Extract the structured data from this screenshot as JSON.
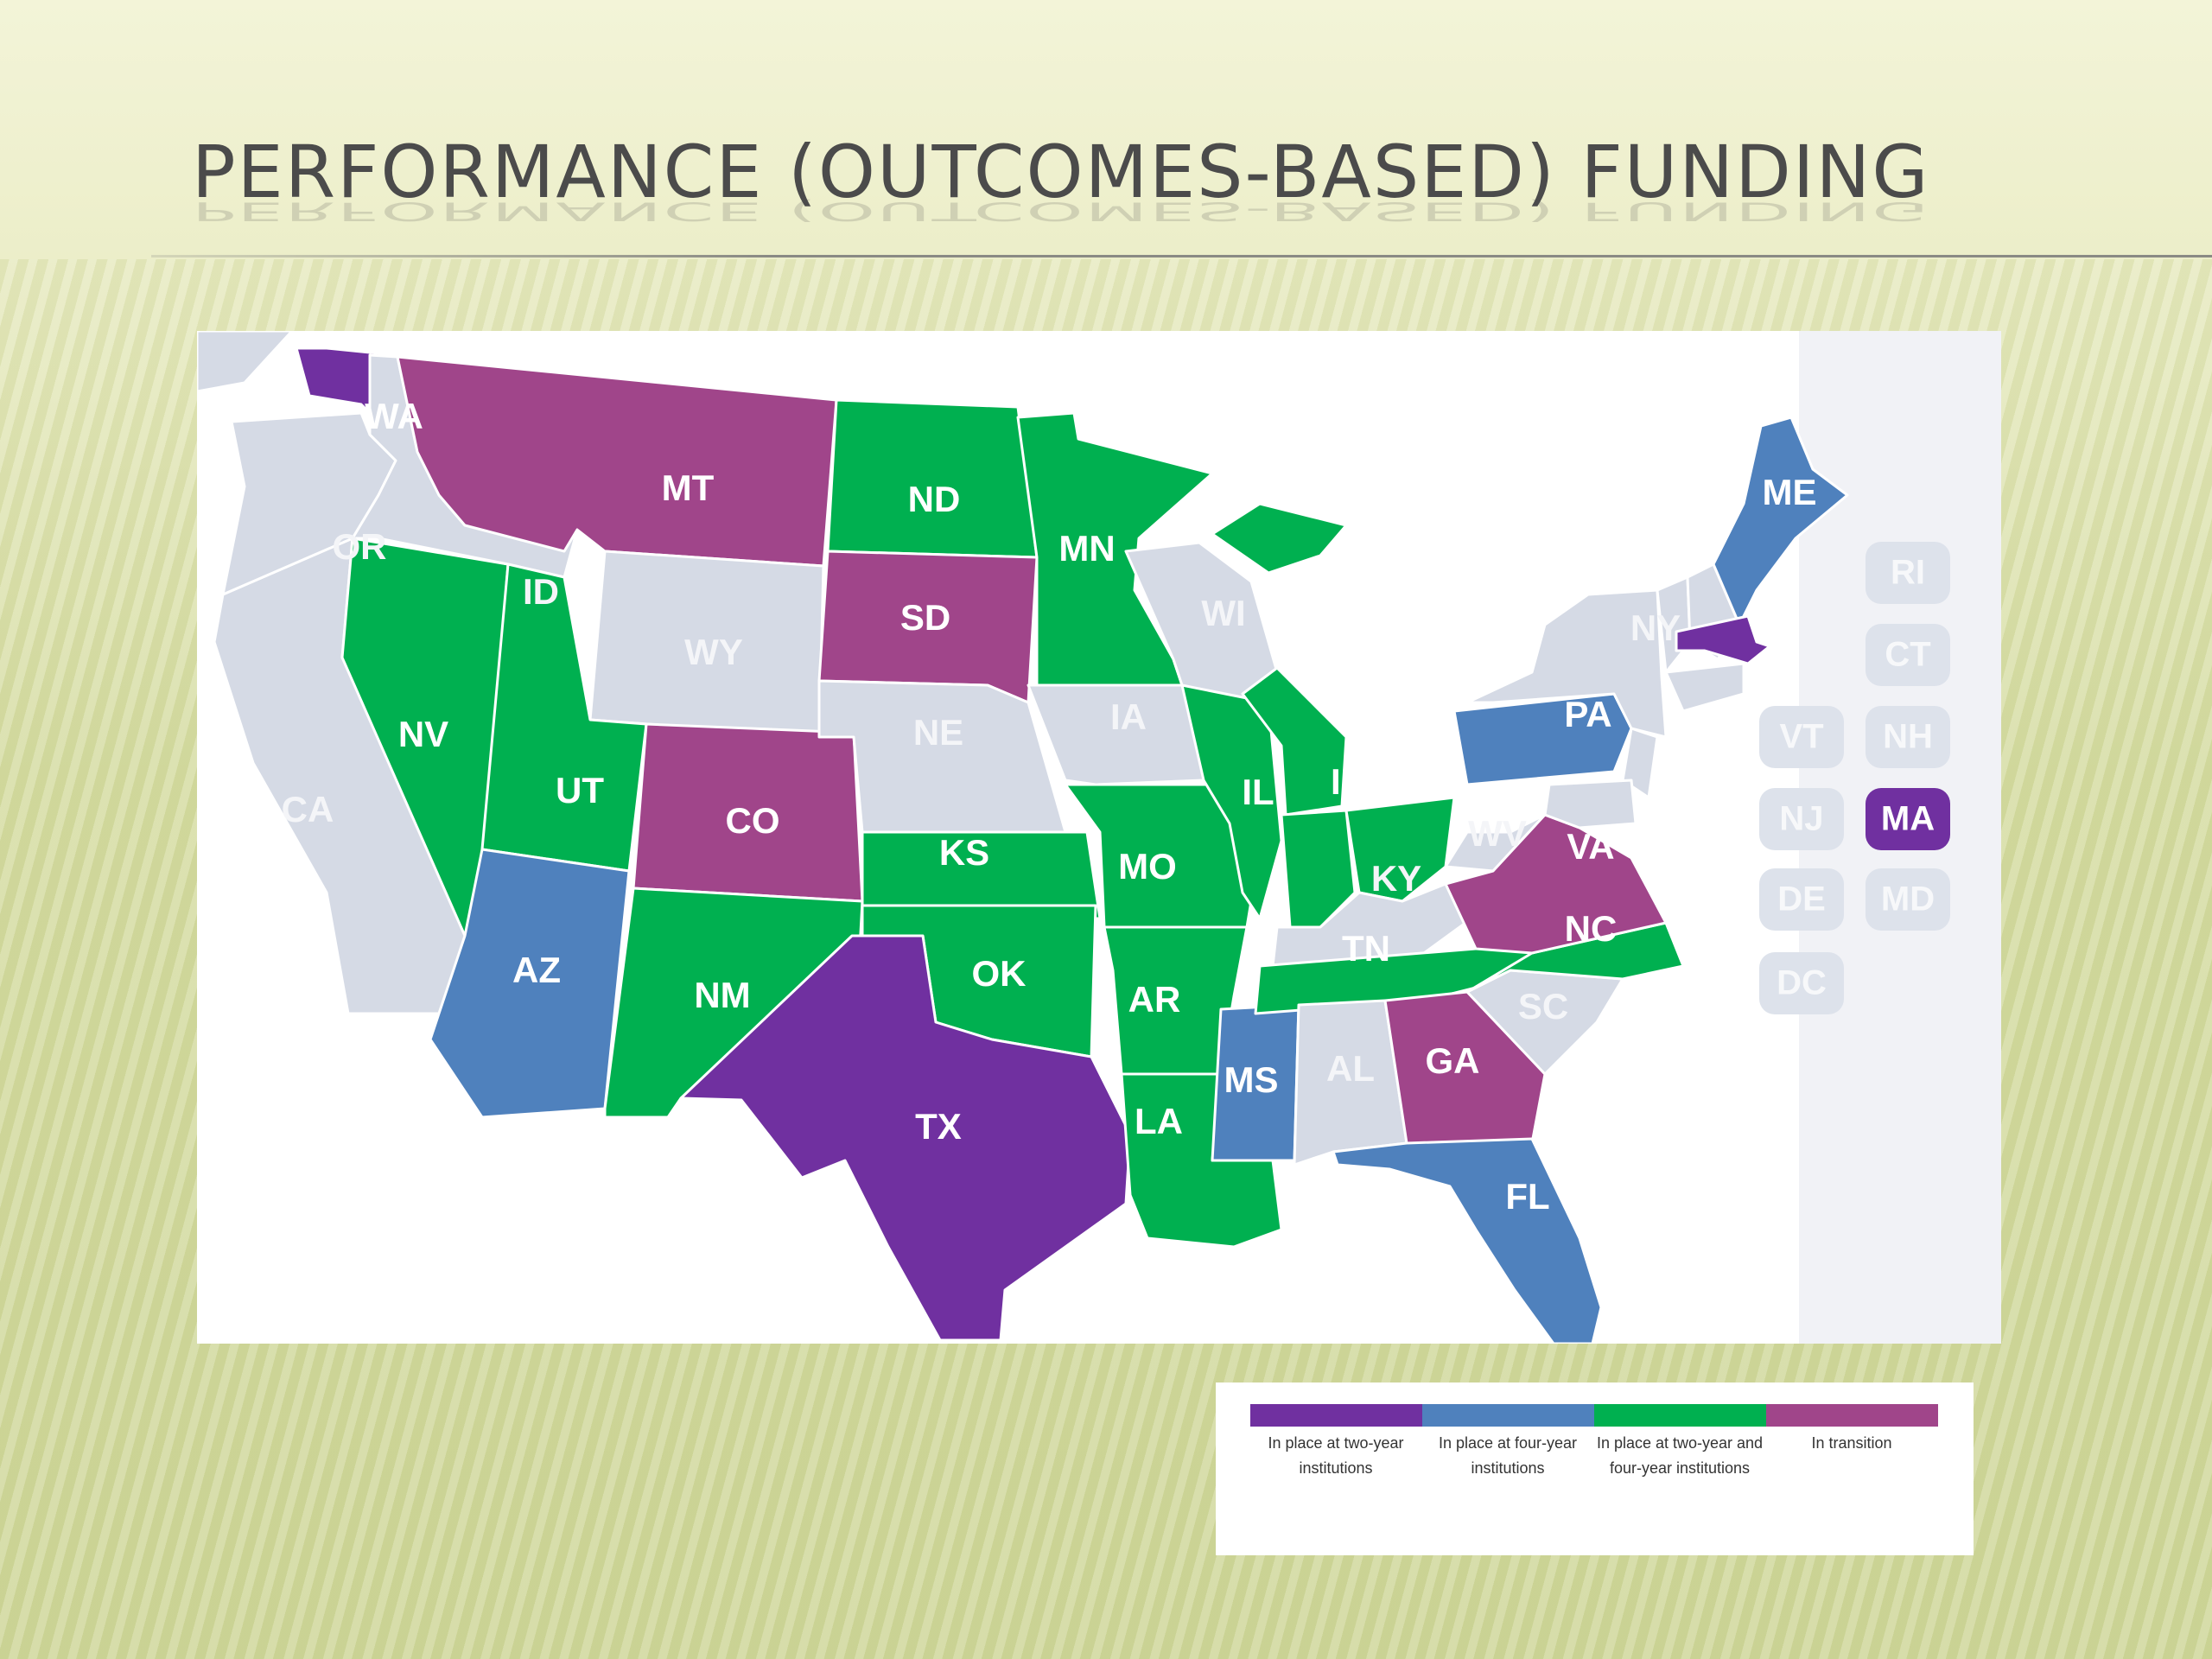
{
  "slide": {
    "title": "PERFORMANCE (OUTCOMES-BASED) FUNDING"
  },
  "colors": {
    "two_year": "#7030a0",
    "four_year": "#4f81bd",
    "two_and_four_year": "#00b050",
    "transition": "#a0458a",
    "none": "#d5dae5",
    "border": "#ffffff"
  },
  "legend": [
    {
      "key": "two_year",
      "label": "In place at two-year institutions"
    },
    {
      "key": "four_year",
      "label": "In place at four-year institutions"
    },
    {
      "key": "two_and_four_year",
      "label": "In place at two-year and four-year institutions"
    },
    {
      "key": "transition",
      "label": "In transition"
    }
  ],
  "states": {
    "WA": "two_year",
    "OR": "none",
    "CA": "none",
    "NV": "two_and_four_year",
    "ID": "none",
    "MT": "transition",
    "WY": "none",
    "UT": "two_and_four_year",
    "AZ": "four_year",
    "CO": "transition",
    "NM": "two_and_four_year",
    "ND": "two_and_four_year",
    "SD": "transition",
    "NE": "none",
    "KS": "two_and_four_year",
    "OK": "two_and_four_year",
    "TX": "two_year",
    "MN": "two_and_four_year",
    "IA": "none",
    "MO": "two_and_four_year",
    "AR": "two_and_four_year",
    "LA": "two_and_four_year",
    "WI": "none",
    "IL": "two_and_four_year",
    "MI": "two_and_four_year",
    "IN": "two_and_four_year",
    "OH": "two_and_four_year",
    "KY": "none",
    "TN": "two_and_four_year",
    "MS": "four_year",
    "AL": "none",
    "GA": "transition",
    "FL": "four_year",
    "SC": "none",
    "NC": "two_and_four_year",
    "VA": "transition",
    "WV": "none",
    "PA": "four_year",
    "NY": "none",
    "ME": "four_year",
    "MA": "two_year",
    "VT": "none",
    "NH": "none",
    "RI": "none",
    "CT": "none",
    "NJ": "none",
    "DE": "none",
    "MD": "none",
    "DC": "none"
  },
  "small_states": [
    "RI",
    "CT",
    "VT",
    "NH",
    "NJ",
    "MA",
    "DE",
    "MD",
    "DC"
  ]
}
